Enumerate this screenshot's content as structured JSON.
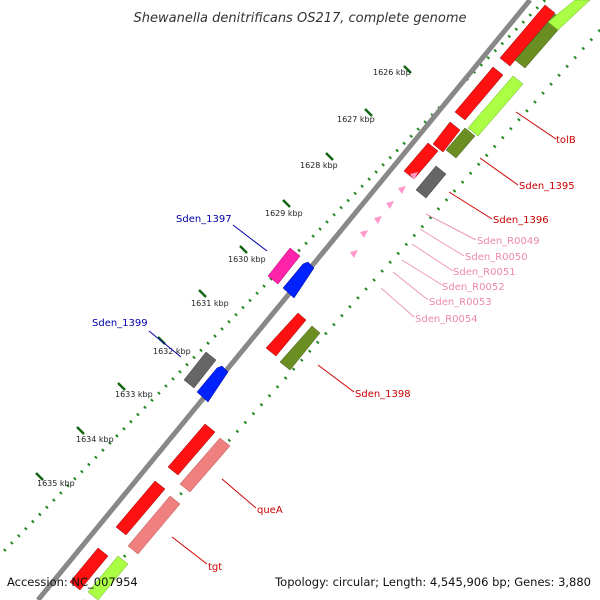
{
  "title": "Shewanella denitrificans OS217, complete genome",
  "footer": {
    "accession": "Accession: NC_007954",
    "summary": "Topology: circular; Length: 4,545,906 bp; Genes: 3,880"
  },
  "ticks": [
    "1626 kbp",
    "1627 kbp",
    "1628 kbp",
    "1629 kbp",
    "1630 kbp",
    "1631 kbp",
    "1632 kbp",
    "1633 kbp",
    "1634 kbp",
    "1635 kbp"
  ],
  "labels": {
    "tolB": "tolB",
    "sden_1395": "Sden_1395",
    "sden_1396": "Sden_1396",
    "sden_r0049": "Sden_R0049",
    "sden_r0050": "Sden_R0050",
    "sden_r0051": "Sden_R0051",
    "sden_r0052": "Sden_R0052",
    "sden_r0053": "Sden_R0053",
    "sden_r0054": "Sden_R0054",
    "sden_1397": "Sden_1397",
    "sden_1399": "Sden_1399",
    "sden_1398": "Sden_1398",
    "queA": "queA",
    "tgt": "tgt"
  },
  "colors": {
    "cds_red": "#ff0000",
    "rrna_pink": "#ff7777",
    "trna_pink": "#ff99cc",
    "blue": "#0000ff",
    "magenta": "#ff00aa",
    "gray": "#666666",
    "olive": "#6b8e23",
    "lime": "#aaff44",
    "light_red": "#f08080",
    "tick_green": "#006600",
    "label_red": "#cc0000",
    "label_blue": "#0000aa"
  }
}
